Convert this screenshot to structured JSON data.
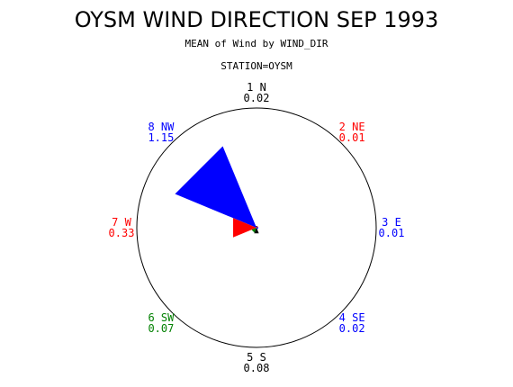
{
  "chart_data": {
    "type": "wind-rose",
    "title": "OYSM WIND DIRECTION SEP 1993",
    "subtitle": "MEAN of Wind by WIND_DIR",
    "station_label": "STATION=OYSM",
    "max_value": 1.15,
    "directions": [
      {
        "index": "1",
        "name": "N",
        "value": 0.02,
        "value_label": "0.02",
        "color": "#000000"
      },
      {
        "index": "2",
        "name": "NE",
        "value": 0.01,
        "value_label": "0.01",
        "color": "#ff0000"
      },
      {
        "index": "3",
        "name": "E",
        "value": 0.01,
        "value_label": "0.01",
        "color": "#0000ff"
      },
      {
        "index": "4",
        "name": "SE",
        "value": 0.02,
        "value_label": "0.02",
        "color": "#0000ff"
      },
      {
        "index": "5",
        "name": "S",
        "value": 0.08,
        "value_label": "0.08",
        "color": "#000000"
      },
      {
        "index": "6",
        "name": "SW",
        "value": 0.07,
        "value_label": "0.07",
        "color": "#008000"
      },
      {
        "index": "7",
        "name": "W",
        "value": 0.33,
        "value_label": "0.33",
        "color": "#ff0000"
      },
      {
        "index": "8",
        "name": "NW",
        "value": 1.15,
        "value_label": "1.15",
        "color": "#0000ff"
      }
    ]
  }
}
